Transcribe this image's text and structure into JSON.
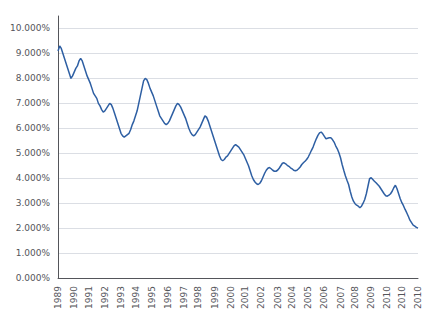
{
  "chart_data": {
    "type": "line",
    "categories": [
      "1989",
      null,
      null,
      null,
      null,
      null,
      null,
      null,
      null,
      null,
      "1990",
      null,
      null,
      null,
      null,
      null,
      null,
      null,
      null,
      "1991",
      null,
      null,
      null,
      null,
      null,
      null,
      null,
      null,
      null,
      "1992",
      null,
      null,
      null,
      null,
      null,
      null,
      null,
      null,
      null,
      "1993",
      null,
      null,
      null,
      null,
      null,
      null,
      null,
      null,
      "1994",
      null,
      null,
      null,
      null,
      null,
      null,
      null,
      null,
      null,
      "1995",
      null,
      null,
      null,
      null,
      null,
      null,
      null,
      null,
      null,
      "1996",
      null,
      null,
      null,
      null,
      null,
      null,
      null,
      null,
      null,
      "1997",
      null,
      null,
      null,
      null,
      null,
      null,
      null,
      null,
      "1998",
      null,
      null,
      null,
      null,
      null,
      null,
      null,
      null,
      null,
      "1999",
      null,
      null,
      null,
      null,
      null,
      null,
      null,
      null,
      null,
      "2000",
      null,
      null,
      null,
      null,
      null,
      null,
      null,
      null,
      "2001",
      null,
      null,
      null,
      null,
      null,
      null,
      null,
      null,
      null,
      "2002",
      null,
      null,
      null,
      null,
      null,
      null,
      null,
      null,
      null,
      "2003",
      null,
      null,
      null,
      null,
      null,
      null,
      null,
      null,
      "2004",
      null,
      null,
      null,
      null,
      null,
      null,
      null,
      null,
      null,
      "2005",
      null,
      null,
      null,
      null,
      null,
      null,
      null,
      null,
      null,
      "2006",
      null,
      null,
      null,
      null,
      null,
      null,
      null,
      null,
      null,
      "2007",
      null,
      null,
      null,
      null,
      null,
      null,
      null,
      null,
      "2008",
      null,
      null,
      null,
      null,
      null,
      null,
      null,
      null,
      null,
      "2009",
      null,
      null,
      null,
      null,
      null,
      null,
      null,
      null,
      null,
      "2010",
      null,
      null,
      null,
      null,
      null,
      null,
      null,
      null,
      "2010",
      null,
      null,
      null,
      null,
      null,
      null,
      null,
      null,
      null,
      "2010"
    ],
    "values": [
      0.091,
      0.093,
      0.092,
      0.09,
      0.088,
      0.086,
      0.084,
      0.082,
      0.08,
      0.081,
      0.0825,
      0.084,
      0.085,
      0.087,
      0.088,
      0.087,
      0.085,
      0.083,
      0.081,
      0.0795,
      0.078,
      0.076,
      0.074,
      0.073,
      0.072,
      0.07,
      0.069,
      0.0675,
      0.0665,
      0.067,
      0.068,
      0.069,
      0.07,
      0.0695,
      0.068,
      0.066,
      0.064,
      0.062,
      0.06,
      0.058,
      0.057,
      0.0565,
      0.057,
      0.0575,
      0.058,
      0.0595,
      0.0615,
      0.063,
      0.065,
      0.067,
      0.07,
      0.073,
      0.076,
      0.079,
      0.08,
      0.0795,
      0.078,
      0.076,
      0.0745,
      0.073,
      0.071,
      0.069,
      0.067,
      0.065,
      0.064,
      0.063,
      0.062,
      0.0615,
      0.062,
      0.063,
      0.0645,
      0.066,
      0.0675,
      0.069,
      0.07,
      0.0695,
      0.0685,
      0.067,
      0.0655,
      0.064,
      0.062,
      0.06,
      0.0585,
      0.0575,
      0.057,
      0.0575,
      0.0585,
      0.0595,
      0.0605,
      0.062,
      0.0635,
      0.065,
      0.0645,
      0.063,
      0.061,
      0.059,
      0.057,
      0.055,
      0.053,
      0.051,
      0.049,
      0.0475,
      0.047,
      0.0475,
      0.0485,
      0.049,
      0.05,
      0.051,
      0.052,
      0.053,
      0.0535,
      0.053,
      0.0525,
      0.0515,
      0.0505,
      0.0495,
      0.048,
      0.0465,
      0.045,
      0.043,
      0.041,
      0.0395,
      0.0385,
      0.0378,
      0.0375,
      0.038,
      0.039,
      0.0405,
      0.042,
      0.0432,
      0.044,
      0.0443,
      0.0438,
      0.0432,
      0.0428,
      0.0428,
      0.0432,
      0.044,
      0.045,
      0.046,
      0.0462,
      0.0458,
      0.0452,
      0.0448,
      0.0442,
      0.0438,
      0.0432,
      0.043,
      0.0432,
      0.0438,
      0.0445,
      0.0455,
      0.0462,
      0.0468,
      0.0475,
      0.0485,
      0.0498,
      0.0512,
      0.0525,
      0.0542,
      0.0558,
      0.0572,
      0.0582,
      0.0585,
      0.0578,
      0.0568,
      0.0558,
      0.056,
      0.0562,
      0.0562,
      0.0555,
      0.0545,
      0.053,
      0.0518,
      0.0502,
      0.0482,
      0.0455,
      0.0432,
      0.041,
      0.0392,
      0.0375,
      0.0348,
      0.0325,
      0.0308,
      0.0298,
      0.0292,
      0.0288,
      0.0282,
      0.0288,
      0.03,
      0.0315,
      0.0338,
      0.0368,
      0.0398,
      0.0402,
      0.0395,
      0.0388,
      0.0382,
      0.0375,
      0.0368,
      0.0358,
      0.0348,
      0.0338,
      0.033,
      0.0328,
      0.0332,
      0.0338,
      0.0348,
      0.0362,
      0.0372,
      0.0358,
      0.0338,
      0.0318,
      0.0302,
      0.029,
      0.0275,
      0.0262,
      0.0248,
      0.0232,
      0.0222,
      0.0212,
      0.0208,
      0.0203,
      0.02
    ],
    "color": "#2E5FA3",
    "ylim": [
      0.0,
      0.105
    ],
    "yticks": [
      {
        "value": 0.0,
        "label": "0.000%"
      },
      {
        "value": 0.01,
        "label": "1.000%"
      },
      {
        "value": 0.02,
        "label": "2.000%"
      },
      {
        "value": 0.03,
        "label": "3.000%"
      },
      {
        "value": 0.04,
        "label": "4.000%"
      },
      {
        "value": 0.05,
        "label": "5.000%"
      },
      {
        "value": 0.06,
        "label": "6.000%"
      },
      {
        "value": 0.07,
        "label": "7.000%"
      },
      {
        "value": 0.08,
        "label": "8.000%"
      },
      {
        "value": 0.09,
        "label": "9.000%"
      },
      {
        "value": 0.1,
        "label": "10.000%"
      }
    ],
    "grid": true
  }
}
